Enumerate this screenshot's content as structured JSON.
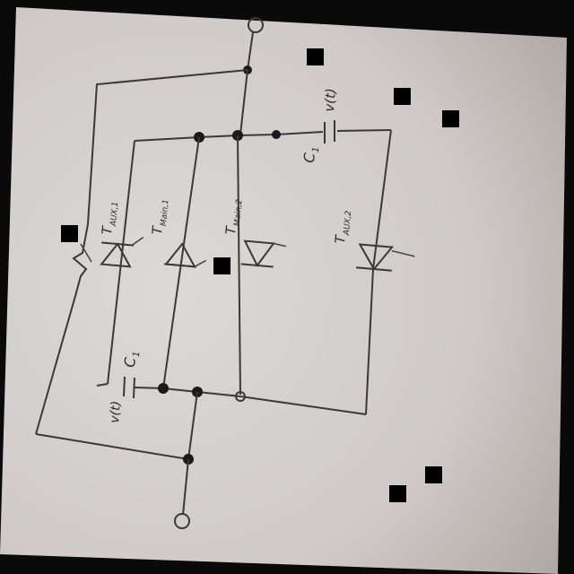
{
  "diagram": {
    "type": "circuit-schematic",
    "medium": "photo of hand-drawn schematic on paper",
    "colors": {
      "paper": "#d8d4d1",
      "ink": "#3b3838",
      "background": "#0a0a0a"
    },
    "labels": {
      "t_aux_1": "T",
      "t_aux_1_sub": "AUX,1",
      "t_main_1": "T",
      "t_main_1_sub": "Main,1",
      "t_main_2": "T",
      "t_main_2_sub": "Main,2",
      "t_aux_2": "T",
      "t_aux_2_sub": "AUX,2",
      "c1_top": "C",
      "c1_top_sub": "1",
      "v_top": "v(t)",
      "c1_bottom": "C",
      "c1_bottom_sub": "1",
      "v_bottom": "v(t)"
    },
    "components": [
      "thyristor",
      "thyristor",
      "thyristor",
      "thyristor",
      "capacitor",
      "capacitor",
      "switch"
    ]
  }
}
